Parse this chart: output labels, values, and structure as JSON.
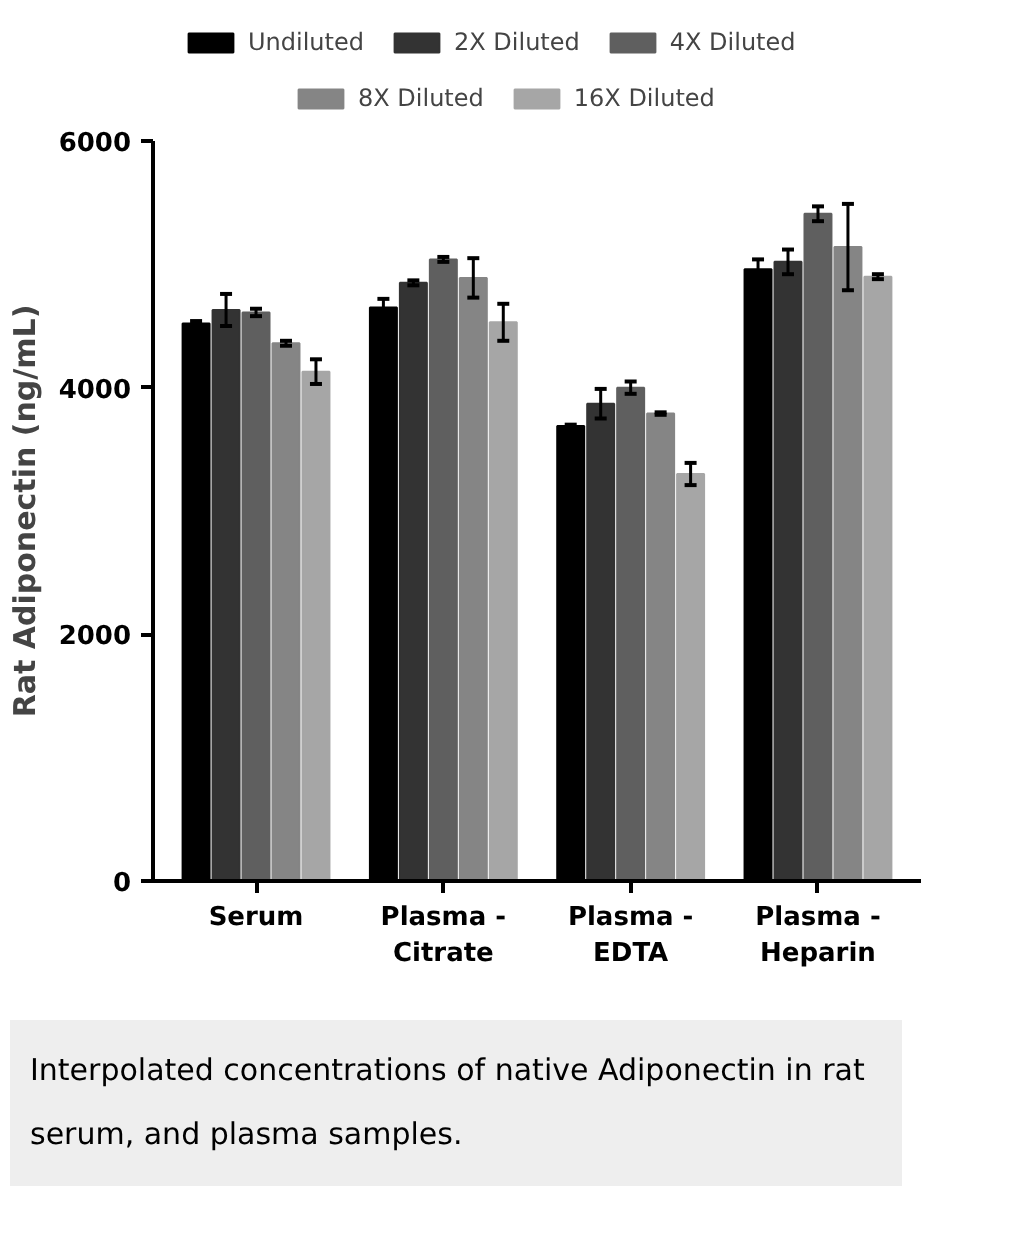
{
  "chart_data": {
    "type": "bar",
    "ylabel": "Rat Adiponectin (ng/mL)",
    "categories": [
      "Serum",
      "Plasma -\nCitrate",
      "Plasma -\nEDTA",
      "Plasma -\nHeparin"
    ],
    "series": [
      {
        "name": "Undiluted",
        "color": "#000000",
        "values": [
          4520,
          4650,
          3690,
          4960
        ],
        "errors": [
          20,
          70,
          10,
          80
        ]
      },
      {
        "name": "2X Diluted",
        "color": "#333333",
        "values": [
          4630,
          4850,
          3870,
          5020
        ],
        "errors": [
          130,
          20,
          120,
          100
        ]
      },
      {
        "name": "4X Diluted",
        "color": "#5f5f5f",
        "values": [
          4610,
          5040,
          4000,
          5410
        ],
        "errors": [
          30,
          20,
          50,
          60
        ]
      },
      {
        "name": "8X Diluted",
        "color": "#858585",
        "values": [
          4360,
          4890,
          3790,
          5140
        ],
        "errors": [
          20,
          160,
          10,
          350
        ]
      },
      {
        "name": "16X Diluted",
        "color": "#a6a6a6",
        "values": [
          4130,
          4530,
          3300,
          4900
        ],
        "errors": [
          100,
          150,
          90,
          20
        ]
      }
    ],
    "ylim": [
      0,
      6000
    ],
    "yticks": [
      0,
      2000,
      4000,
      6000
    ],
    "grid": false,
    "legend": "top",
    "annotations": [
      "Interpolated concentrations of native Adiponectin in rat serum, and plasma samples."
    ]
  }
}
